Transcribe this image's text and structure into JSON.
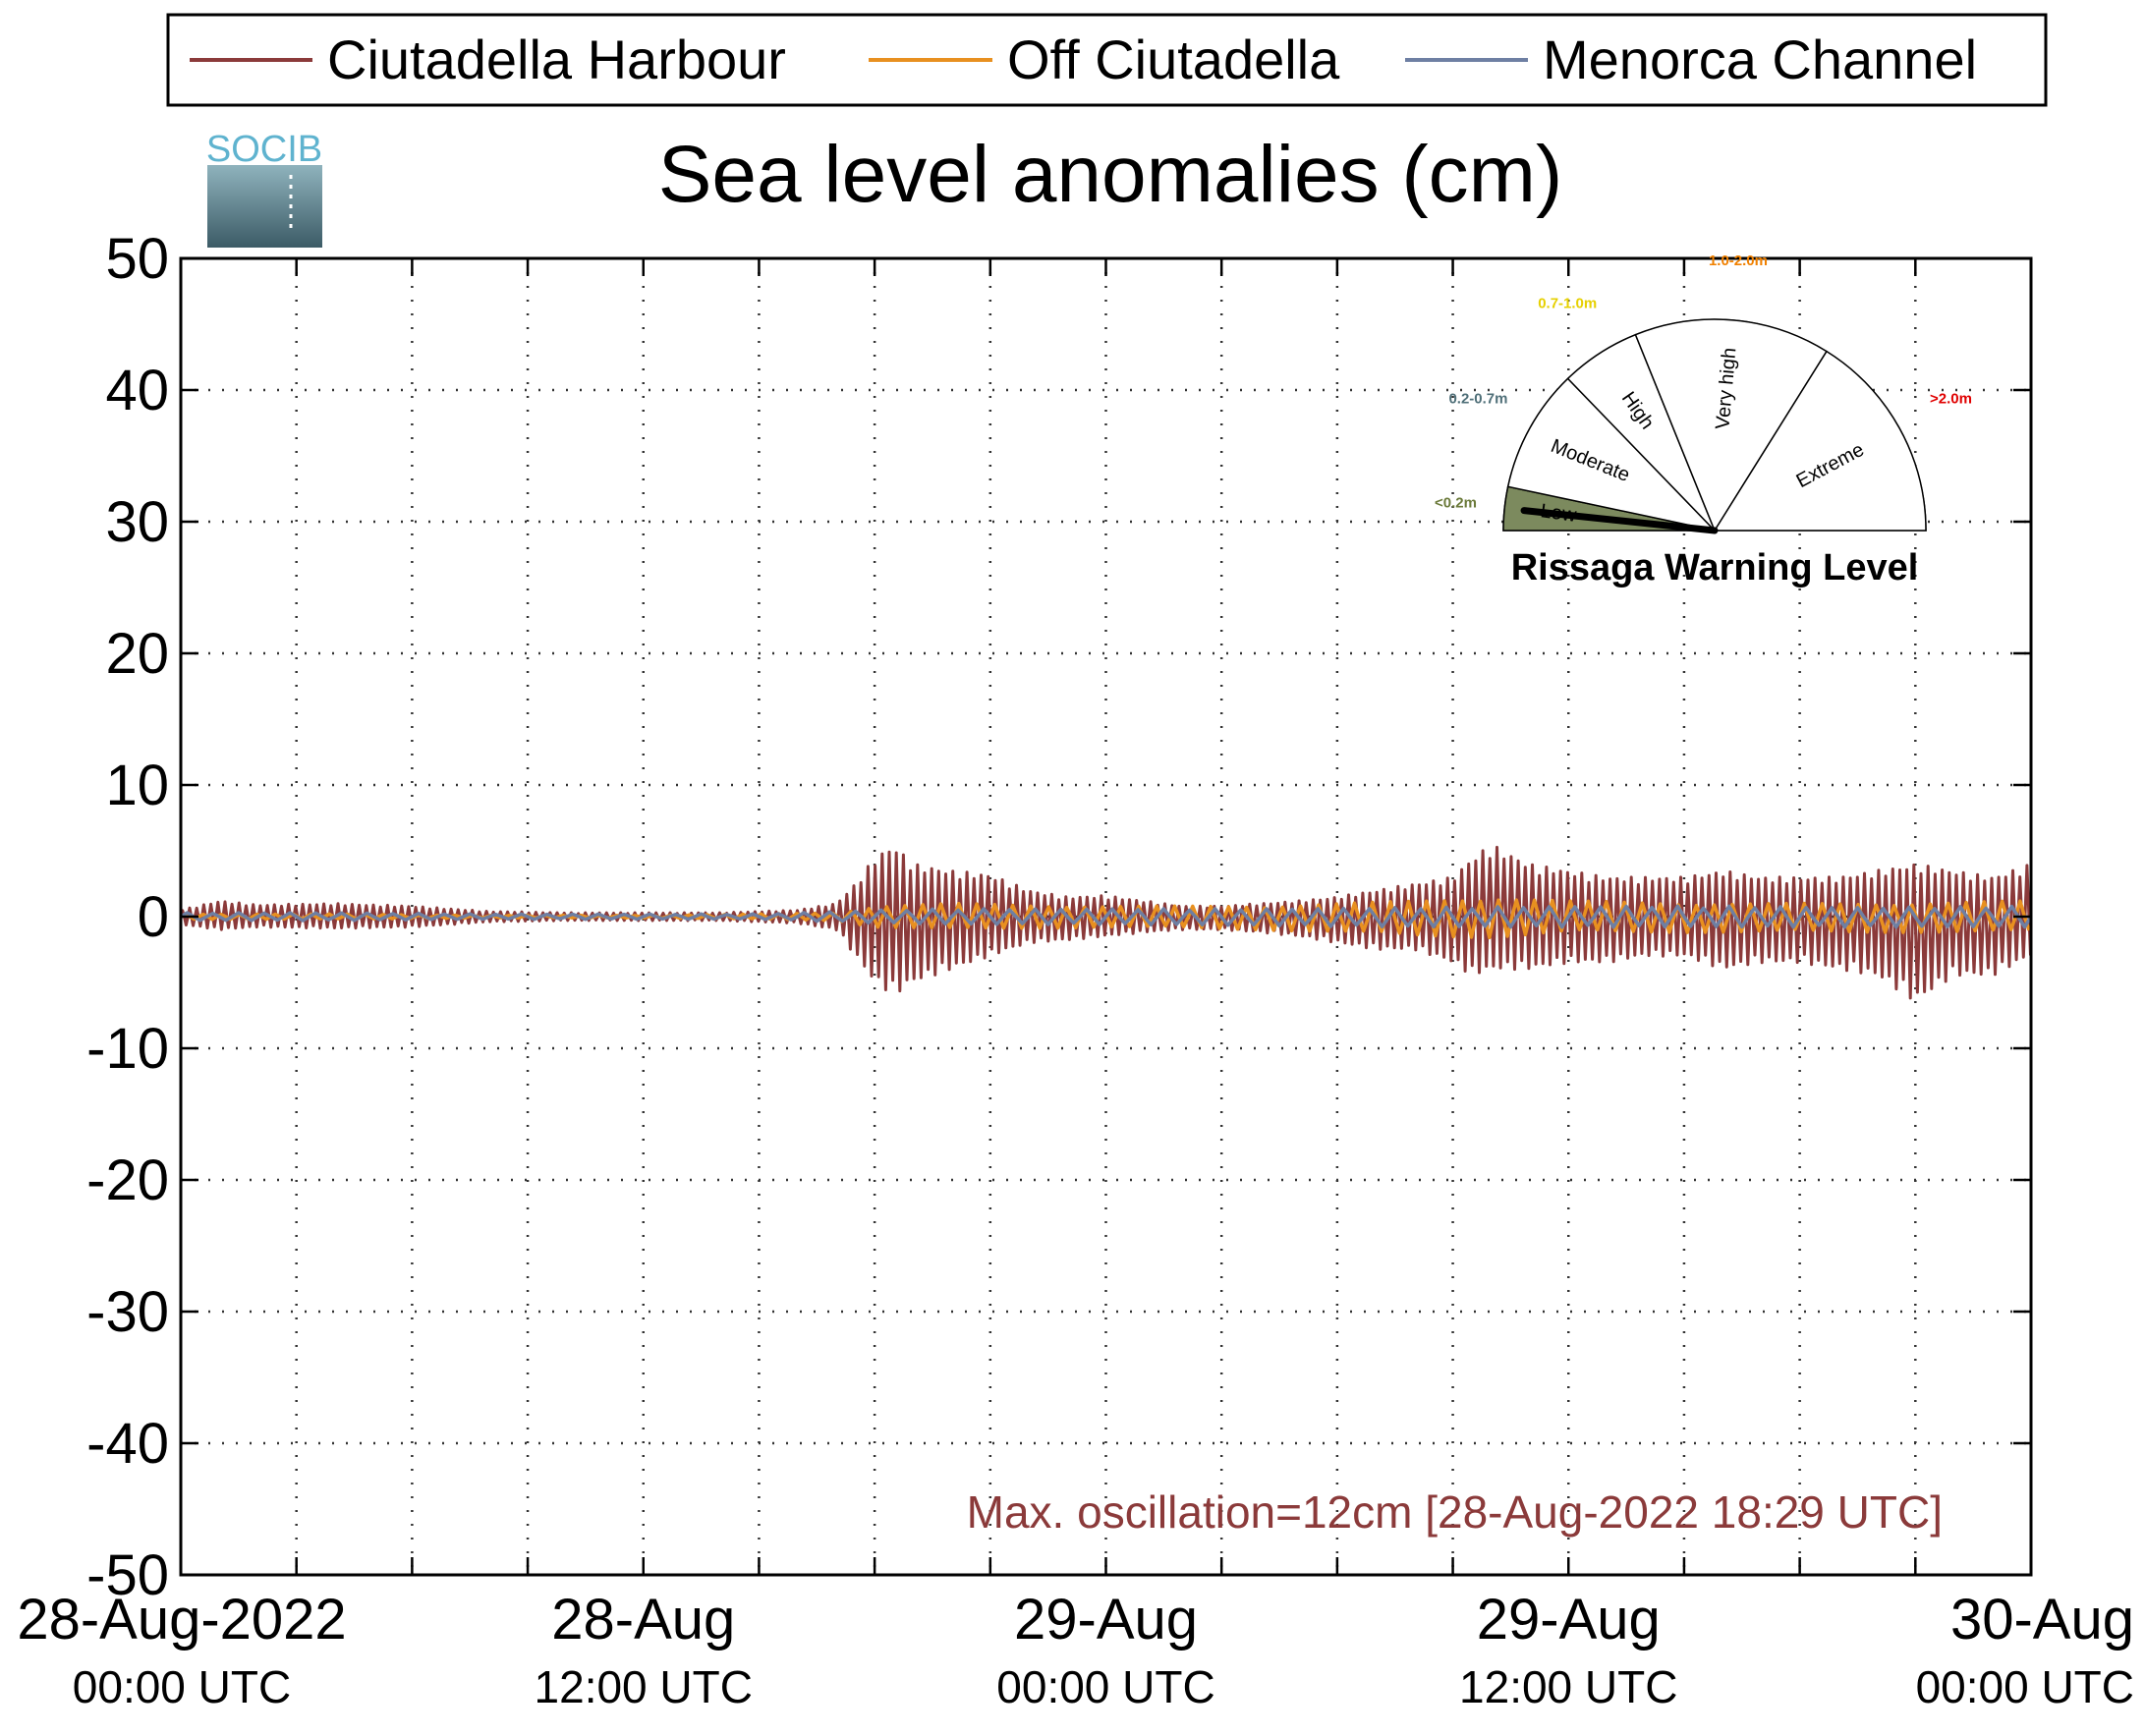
{
  "chart_data": {
    "type": "line",
    "title": "Sea level anomalies (cm)",
    "xlabel": "",
    "ylabel": "",
    "ylim": [
      -50,
      50
    ],
    "yticks": [
      50,
      40,
      30,
      20,
      10,
      0,
      -10,
      -20,
      -30,
      -40,
      -50
    ],
    "x_range": [
      "2022-08-28 00:00 UTC",
      "2022-08-30 00:00 UTC"
    ],
    "x_tick_hours": [
      0,
      3,
      6,
      9,
      12,
      15,
      18,
      21,
      24,
      27,
      30,
      33,
      36,
      39,
      42,
      45,
      48
    ],
    "x_tick_labels": [
      {
        "hour": 0,
        "line1": "28-Aug-2022",
        "line2": "00:00 UTC",
        "anchor": "middle"
      },
      {
        "hour": 12,
        "line1": "28-Aug",
        "line2": "12:00 UTC",
        "anchor": "middle"
      },
      {
        "hour": 24,
        "line1": "29-Aug",
        "line2": "00:00 UTC",
        "anchor": "middle"
      },
      {
        "hour": 36,
        "line1": "29-Aug",
        "line2": "12:00 UTC",
        "anchor": "middle"
      },
      {
        "hour": 48,
        "line1": "30-Aug",
        "line2": "00:00 UTC",
        "anchor": "end"
      }
    ],
    "grid": true,
    "legend_position": "top",
    "series": [
      {
        "name": "Ciutadella Harbour",
        "color": "#8b3a3a",
        "envelope": {
          "hours": [
            0,
            1,
            2,
            4,
            6,
            8,
            10,
            12,
            14,
            15,
            16,
            17,
            17.5,
            18,
            18.5,
            19,
            20,
            21,
            22,
            23,
            24,
            25,
            26,
            27,
            28,
            29,
            30,
            31,
            32,
            33,
            33.5,
            34,
            35,
            36,
            37,
            38,
            39,
            40,
            41,
            42,
            43,
            44,
            45,
            46,
            47,
            48
          ],
          "top": [
            0.5,
            1.2,
            0.9,
            1.0,
            0.8,
            0.4,
            0.3,
            0.3,
            0.3,
            0.4,
            0.5,
            1.0,
            2.5,
            4.5,
            5.5,
            4.0,
            3.5,
            3.2,
            2.0,
            1.5,
            1.6,
            1.2,
            0.8,
            0.8,
            1.0,
            1.2,
            1.5,
            2.0,
            2.5,
            3.0,
            4.5,
            5.5,
            4.0,
            3.5,
            3.0,
            3.0,
            3.0,
            3.5,
            3.0,
            3.0,
            3.0,
            3.5,
            4.0,
            3.5,
            3.0,
            4.0
          ],
          "bottom": [
            -0.6,
            -1.0,
            -0.8,
            -0.9,
            -0.8,
            -0.4,
            -0.3,
            -0.3,
            -0.3,
            -0.4,
            -0.5,
            -1.0,
            -3.0,
            -5.0,
            -6.0,
            -5.0,
            -4.0,
            -3.0,
            -2.0,
            -1.8,
            -1.5,
            -1.2,
            -1.0,
            -1.0,
            -1.2,
            -1.5,
            -2.0,
            -2.5,
            -2.5,
            -3.5,
            -4.5,
            -4.0,
            -4.0,
            -3.5,
            -3.5,
            -3.0,
            -3.0,
            -4.0,
            -3.5,
            -3.5,
            -4.0,
            -4.5,
            -6.5,
            -4.5,
            -4.5,
            -3.0
          ]
        },
        "period_min": 11
      },
      {
        "name": "Off Ciutadella",
        "color": "#e89020",
        "envelope": {
          "hours": [
            0,
            4,
            8,
            12,
            15,
            17,
            18,
            20,
            24,
            28,
            30,
            32,
            34,
            36,
            40,
            44,
            48
          ],
          "top": [
            0.2,
            0.2,
            0.1,
            0.1,
            0.2,
            0.3,
            0.8,
            1.0,
            0.8,
            0.8,
            1.0,
            1.2,
            1.5,
            1.2,
            1.0,
            1.0,
            1.2
          ],
          "bottom": [
            -0.2,
            -0.2,
            -0.1,
            -0.1,
            -0.2,
            -0.3,
            -0.8,
            -1.0,
            -0.8,
            -1.0,
            -1.2,
            -1.5,
            -1.6,
            -1.2,
            -1.2,
            -1.2,
            -1.2
          ]
        },
        "period_min": 28
      },
      {
        "name": "Menorca Channel",
        "color": "#6e7fa3",
        "envelope": {
          "hours": [
            0,
            4,
            8,
            12,
            15,
            18,
            20,
            24,
            28,
            32,
            36,
            40,
            44,
            48
          ],
          "top": [
            0.3,
            0.3,
            0.2,
            0.2,
            0.2,
            0.5,
            0.6,
            0.6,
            0.6,
            0.7,
            0.8,
            0.8,
            0.7,
            0.8
          ],
          "bottom": [
            -0.3,
            -0.3,
            -0.2,
            -0.2,
            -0.2,
            -0.5,
            -0.6,
            -0.6,
            -0.7,
            -0.8,
            -0.8,
            -0.8,
            -0.8,
            -0.8
          ]
        },
        "period_min": 40
      }
    ],
    "annotation": {
      "text": "Max. oscillation=12cm [28-Aug-2022 18:29 UTC]",
      "color": "#8b3a3a"
    },
    "logo_text": "SOCIB",
    "gauge": {
      "title": "Rissaga Warning Level",
      "value_level": "Low",
      "sectors": [
        {
          "label": "Low",
          "range_label": "<0.2m",
          "range_color": "#6b7a3a",
          "active": true
        },
        {
          "label": "Moderate",
          "range_label": "0.2-0.7m",
          "range_color": "#4f6f78",
          "active": false
        },
        {
          "label": "High",
          "range_label": "0.7-1.0m",
          "range_color": "#e6d000",
          "active": false
        },
        {
          "label": "Very high",
          "range_label": "1.0-2.0m",
          "range_color": "#f08000",
          "active": false
        },
        {
          "label": "Extreme",
          "range_label": ">2.0m",
          "range_color": "#e00000",
          "active": false
        }
      ],
      "active_fill": "#7c8a5e"
    }
  }
}
